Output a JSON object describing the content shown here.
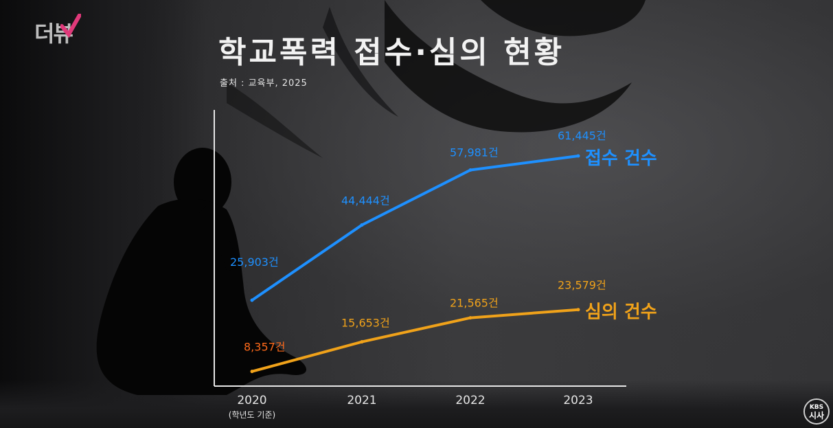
{
  "title": "학교폭력 접수·심의 현황",
  "source": "출처 : 교육부, 2025",
  "logo_text": "더뷰",
  "broadcaster": {
    "line1": "KBS",
    "line2": "시사"
  },
  "colors": {
    "received": "#1e90ff",
    "deliberated": "#f0a21a",
    "first_deliberated_label": "#ff6a1a"
  },
  "chart_data": {
    "type": "line",
    "title": "학교폭력 접수·심의 현황",
    "categories": [
      "2020",
      "2021",
      "2022",
      "2023"
    ],
    "x_sublabel": "(학년도 기준)",
    "xlabel": "",
    "ylabel": "",
    "ylim": [
      0,
      70000
    ],
    "grid": false,
    "series": [
      {
        "name": "접수 건수",
        "values": [
          25903,
          44444,
          57981,
          61445
        ],
        "labels": [
          "25,903건",
          "44,444건",
          "57,981건",
          "61,445건"
        ]
      },
      {
        "name": "심의 건수",
        "values": [
          8357,
          15653,
          21565,
          23579
        ],
        "labels": [
          "8,357건",
          "15,653건",
          "21,565건",
          "23,579건"
        ]
      }
    ]
  }
}
